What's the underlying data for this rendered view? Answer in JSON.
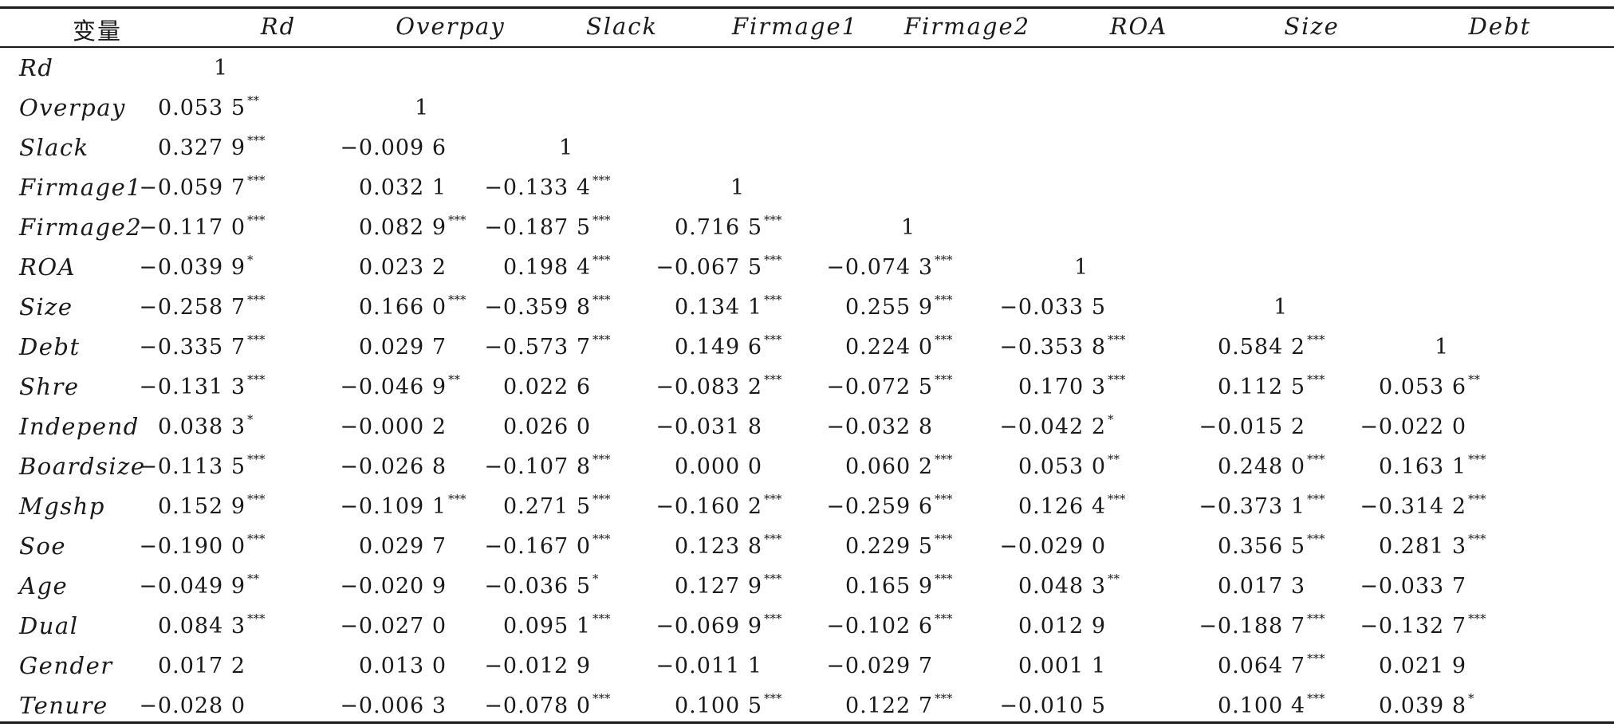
{
  "table": {
    "corner_label": "变量",
    "columns": [
      "Rd",
      "Overpay",
      "Slack",
      "Firmage1",
      "Firmage2",
      "ROA",
      "Size",
      "Debt"
    ],
    "rows": [
      {
        "label": "Rd",
        "cells": [
          [
            "1",
            ""
          ]
        ]
      },
      {
        "label": "Overpay",
        "cells": [
          [
            "0.053 5",
            "**"
          ],
          [
            "1",
            ""
          ]
        ]
      },
      {
        "label": "Slack",
        "cells": [
          [
            "0.327 9",
            "***"
          ],
          [
            "−0.009 6",
            ""
          ],
          [
            "1",
            ""
          ]
        ]
      },
      {
        "label": "Firmage1",
        "cells": [
          [
            "−0.059 7",
            "***"
          ],
          [
            "0.032 1",
            ""
          ],
          [
            "−0.133 4",
            "***"
          ],
          [
            "1",
            ""
          ]
        ]
      },
      {
        "label": "Firmage2",
        "cells": [
          [
            "−0.117 0",
            "***"
          ],
          [
            "0.082 9",
            "***"
          ],
          [
            "−0.187 5",
            "***"
          ],
          [
            "0.716 5",
            "***"
          ],
          [
            "1",
            ""
          ]
        ]
      },
      {
        "label": "ROA",
        "cells": [
          [
            "−0.039 9",
            "*"
          ],
          [
            "0.023 2",
            ""
          ],
          [
            "0.198 4",
            "***"
          ],
          [
            "−0.067 5",
            "***"
          ],
          [
            "−0.074 3",
            "***"
          ],
          [
            "1",
            ""
          ]
        ]
      },
      {
        "label": "Size",
        "cells": [
          [
            "−0.258 7",
            "***"
          ],
          [
            "0.166 0",
            "***"
          ],
          [
            "−0.359 8",
            "***"
          ],
          [
            "0.134 1",
            "***"
          ],
          [
            "0.255 9",
            "***"
          ],
          [
            "−0.033 5",
            ""
          ],
          [
            "1",
            ""
          ]
        ]
      },
      {
        "label": "Debt",
        "cells": [
          [
            "−0.335 7",
            "***"
          ],
          [
            "0.029 7",
            ""
          ],
          [
            "−0.573 7",
            "***"
          ],
          [
            "0.149 6",
            "***"
          ],
          [
            "0.224 0",
            "***"
          ],
          [
            "−0.353 8",
            "***"
          ],
          [
            "0.584 2",
            "***"
          ],
          [
            "1",
            ""
          ]
        ]
      },
      {
        "label": "Shre",
        "cells": [
          [
            "−0.131 3",
            "***"
          ],
          [
            "−0.046 9",
            "**"
          ],
          [
            "0.022 6",
            ""
          ],
          [
            "−0.083 2",
            "***"
          ],
          [
            "−0.072 5",
            "***"
          ],
          [
            "0.170 3",
            "***"
          ],
          [
            "0.112 5",
            "***"
          ],
          [
            "0.053 6",
            "**"
          ]
        ]
      },
      {
        "label": "Independ",
        "cells": [
          [
            "0.038 3",
            "*"
          ],
          [
            "−0.000 2",
            ""
          ],
          [
            "0.026 0",
            ""
          ],
          [
            "−0.031 8",
            ""
          ],
          [
            "−0.032 8",
            ""
          ],
          [
            "−0.042 2",
            "*"
          ],
          [
            "−0.015 2",
            ""
          ],
          [
            "−0.022 0",
            ""
          ]
        ]
      },
      {
        "label": "Boardsize",
        "cells": [
          [
            "−0.113 5",
            "***"
          ],
          [
            "−0.026 8",
            ""
          ],
          [
            "−0.107 8",
            "***"
          ],
          [
            "0.000 0",
            ""
          ],
          [
            "0.060 2",
            "***"
          ],
          [
            "0.053 0",
            "**"
          ],
          [
            "0.248 0",
            "***"
          ],
          [
            "0.163 1",
            "***"
          ]
        ]
      },
      {
        "label": "Mgshp",
        "cells": [
          [
            "0.152 9",
            "***"
          ],
          [
            "−0.109 1",
            "***"
          ],
          [
            "0.271 5",
            "***"
          ],
          [
            "−0.160 2",
            "***"
          ],
          [
            "−0.259 6",
            "***"
          ],
          [
            "0.126 4",
            "***"
          ],
          [
            "−0.373 1",
            "***"
          ],
          [
            "−0.314 2",
            "***"
          ]
        ]
      },
      {
        "label": "Soe",
        "cells": [
          [
            "−0.190 0",
            "***"
          ],
          [
            "0.029 7",
            ""
          ],
          [
            "−0.167 0",
            "***"
          ],
          [
            "0.123 8",
            "***"
          ],
          [
            "0.229 5",
            "***"
          ],
          [
            "−0.029 0",
            ""
          ],
          [
            "0.356 5",
            "***"
          ],
          [
            "0.281 3",
            "***"
          ]
        ]
      },
      {
        "label": "Age",
        "cells": [
          [
            "−0.049 9",
            "**"
          ],
          [
            "−0.020 9",
            ""
          ],
          [
            "−0.036 5",
            "*"
          ],
          [
            "0.127 9",
            "***"
          ],
          [
            "0.165 9",
            "***"
          ],
          [
            "0.048 3",
            "**"
          ],
          [
            "0.017 3",
            ""
          ],
          [
            "−0.033 7",
            ""
          ]
        ]
      },
      {
        "label": "Dual",
        "cells": [
          [
            "0.084 3",
            "***"
          ],
          [
            "−0.027 0",
            ""
          ],
          [
            "0.095 1",
            "***"
          ],
          [
            "−0.069 9",
            "***"
          ],
          [
            "−0.102 6",
            "***"
          ],
          [
            "0.012 9",
            ""
          ],
          [
            "−0.188 7",
            "***"
          ],
          [
            "−0.132 7",
            "***"
          ]
        ]
      },
      {
        "label": "Gender",
        "cells": [
          [
            "0.017 2",
            ""
          ],
          [
            "0.013 0",
            ""
          ],
          [
            "−0.012 9",
            ""
          ],
          [
            "−0.011 1",
            ""
          ],
          [
            "−0.029 7",
            ""
          ],
          [
            "0.001 1",
            ""
          ],
          [
            "0.064 7",
            "***"
          ],
          [
            "0.021 9",
            ""
          ]
        ]
      },
      {
        "label": "Tenure",
        "cells": [
          [
            "−0.028 0",
            ""
          ],
          [
            "−0.006 3",
            ""
          ],
          [
            "−0.078 0",
            "***"
          ],
          [
            "0.100 5",
            "***"
          ],
          [
            "0.122 7",
            "***"
          ],
          [
            "−0.010 5",
            ""
          ],
          [
            "0.100 4",
            "***"
          ],
          [
            "0.039 8",
            "*"
          ]
        ]
      }
    ]
  }
}
